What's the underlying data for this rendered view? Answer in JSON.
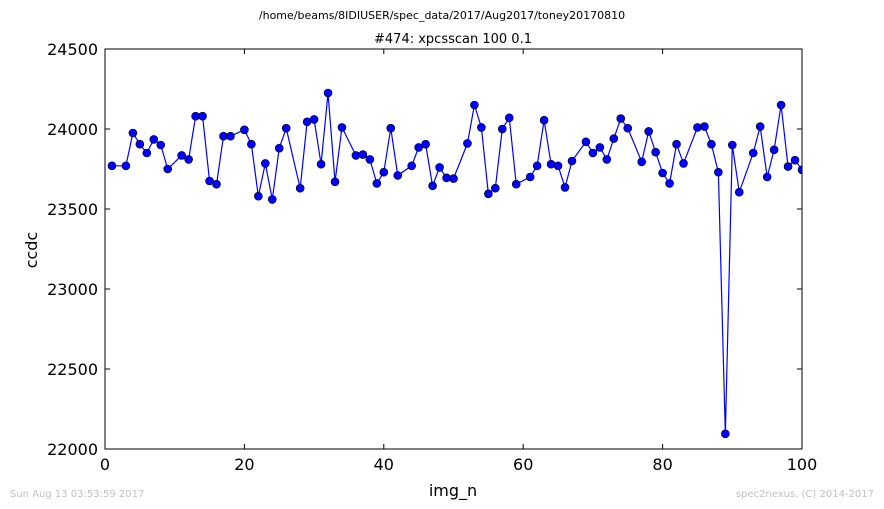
{
  "chart_data": {
    "type": "line",
    "supertitle": "/home/beams/8IDIUSER/spec_data/2017/Aug2017/toney20170810",
    "title": "#474: xpcsscan 100 0.1",
    "xlabel": "img_n",
    "ylabel": "ccdc",
    "xlim": [
      0,
      100
    ],
    "ylim": [
      22000,
      24500
    ],
    "xticks": [
      0,
      20,
      40,
      60,
      80,
      100
    ],
    "yticks": [
      22000,
      22500,
      23000,
      23500,
      24000,
      24500
    ],
    "grid": false,
    "series": [
      {
        "color": "#0000ff",
        "marker": "circle",
        "x": [
          1,
          3,
          4,
          5,
          6,
          7,
          8,
          9,
          11,
          12,
          13,
          14,
          15,
          16,
          17,
          18,
          20,
          21,
          22,
          23,
          24,
          25,
          26,
          28,
          29,
          30,
          31,
          32,
          33,
          34,
          36,
          37,
          38,
          39,
          40,
          41,
          42,
          44,
          45,
          46,
          47,
          48,
          49,
          50,
          52,
          53,
          54,
          55,
          56,
          57,
          58,
          59,
          61,
          62,
          63,
          64,
          65,
          66,
          67,
          69,
          70,
          71,
          72,
          73,
          74,
          75,
          77,
          78,
          79,
          80,
          81,
          82,
          83,
          85,
          86,
          87,
          88,
          89,
          90,
          91,
          93,
          94,
          95,
          96,
          97,
          98,
          99,
          100
        ],
        "y": [
          23770,
          23770,
          23975,
          23905,
          23850,
          23935,
          23900,
          23750,
          23835,
          23810,
          24080,
          24080,
          23675,
          23655,
          23955,
          23955,
          23995,
          23905,
          23580,
          23785,
          23560,
          23880,
          24005,
          23630,
          24045,
          24060,
          23780,
          24225,
          23670,
          24010,
          23835,
          23840,
          23810,
          23660,
          23730,
          24005,
          23710,
          23770,
          23885,
          23905,
          23645,
          23760,
          23695,
          23690,
          23910,
          24150,
          24010,
          23595,
          23630,
          24000,
          24070,
          23655,
          23700,
          23770,
          24055,
          23780,
          23770,
          23635,
          23800,
          23920,
          23850,
          23885,
          23810,
          23940,
          24065,
          24005,
          23795,
          23985,
          23855,
          23725,
          23660,
          23905,
          23785,
          24010,
          24015,
          23905,
          23730,
          22095,
          23900,
          23605,
          23850,
          24015,
          23700,
          23870,
          24150,
          23765,
          23805,
          23745
        ]
      }
    ]
  },
  "footer": {
    "left": "Sun Aug 13 03:53:59 2017",
    "right": "spec2nexus, (C) 2014-2017"
  }
}
